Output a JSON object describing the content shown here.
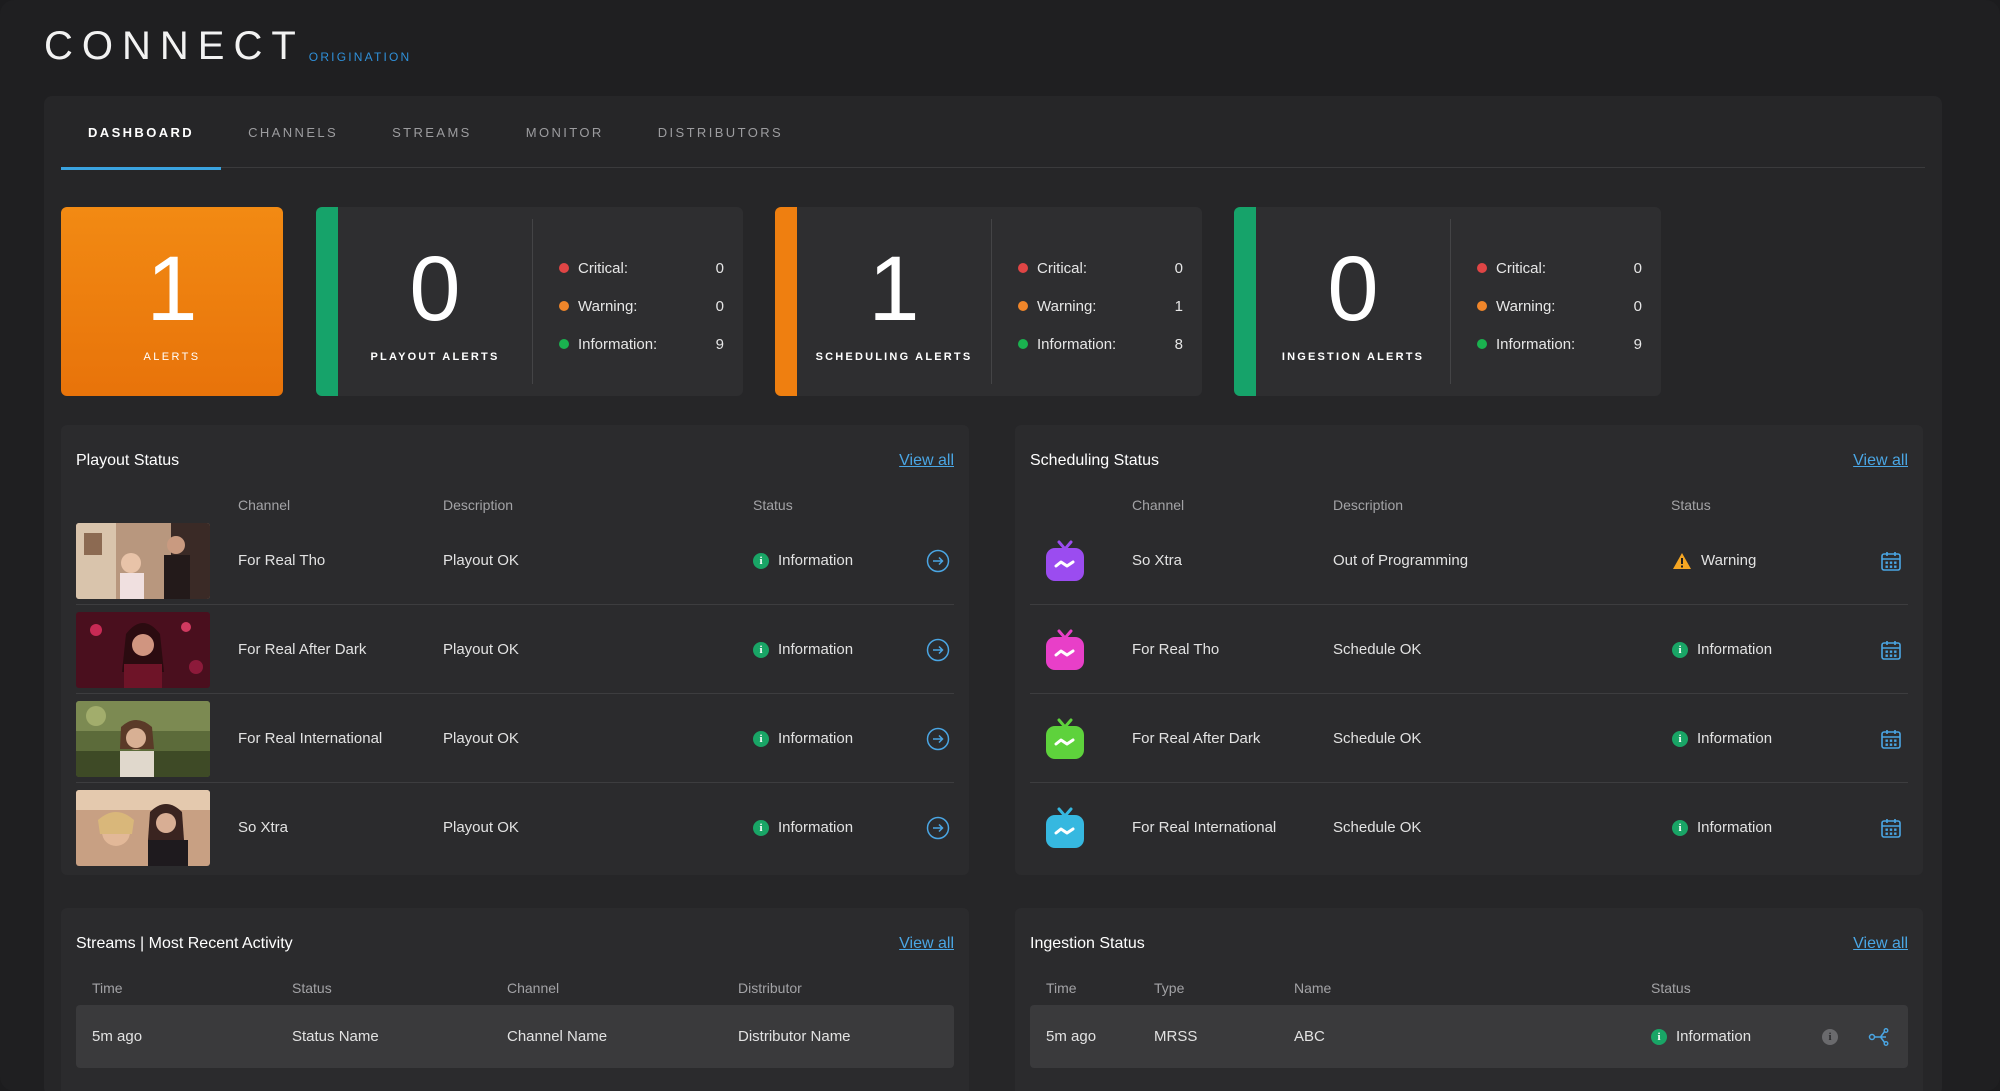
{
  "logo": {
    "main": "CONNECT",
    "sub": "ORIGINATION"
  },
  "tabs": [
    {
      "label": "DASHBOARD",
      "active": true
    },
    {
      "label": "CHANNELS",
      "active": false
    },
    {
      "label": "STREAMS",
      "active": false
    },
    {
      "label": "MONITOR",
      "active": false
    },
    {
      "label": "DISTRIBUTORS",
      "active": false
    }
  ],
  "alerts_total": {
    "count": "1",
    "label": "ALERTS",
    "color": "#ef7f10"
  },
  "alert_cards": [
    {
      "count": "0",
      "label": "PLAYOUT ALERTS",
      "accent": "#16a36a",
      "critical_label": "Critical:",
      "critical": "0",
      "warning_label": "Warning:",
      "warning": "0",
      "info_label": "Information:",
      "info": "9"
    },
    {
      "count": "1",
      "label": "SCHEDULING ALERTS",
      "accent": "#ef7f10",
      "critical_label": "Critical:",
      "critical": "0",
      "warning_label": "Warning:",
      "warning": "1",
      "info_label": "Information:",
      "info": "8"
    },
    {
      "count": "0",
      "label": "INGESTION ALERTS",
      "accent": "#16a36a",
      "critical_label": "Critical:",
      "critical": "0",
      "warning_label": "Warning:",
      "warning": "0",
      "info_label": "Information:",
      "info": "9"
    }
  ],
  "colors": {
    "critical": "#e04545",
    "warning": "#f0862a",
    "info": "#1ab24f",
    "link": "#4aa6e4"
  },
  "playout": {
    "title": "Playout Status",
    "view_all": "View all",
    "headers": {
      "channel": "Channel",
      "description": "Description",
      "status": "Status"
    },
    "rows": [
      {
        "channel": "For Real Tho",
        "description": "Playout OK",
        "status": "Information"
      },
      {
        "channel": "For Real After Dark",
        "description": "Playout OK",
        "status": "Information"
      },
      {
        "channel": "For Real International",
        "description": "Playout OK",
        "status": "Information"
      },
      {
        "channel": "So Xtra",
        "description": "Playout OK",
        "status": "Information"
      }
    ]
  },
  "scheduling": {
    "title": "Scheduling Status",
    "view_all": "View all",
    "headers": {
      "channel": "Channel",
      "description": "Description",
      "status": "Status"
    },
    "rows": [
      {
        "channel": "So Xtra",
        "description": "Out of Programming",
        "status": "Warning",
        "icon_color": "#9b4cf0"
      },
      {
        "channel": "For Real Tho",
        "description": "Schedule OK",
        "status": "Information",
        "icon_color": "#e83fc8"
      },
      {
        "channel": "For Real After Dark",
        "description": "Schedule OK",
        "status": "Information",
        "icon_color": "#5ed23c"
      },
      {
        "channel": "For Real International",
        "description": "Schedule OK",
        "status": "Information",
        "icon_color": "#36b8e0"
      }
    ]
  },
  "streams": {
    "title": "Streams | Most Recent Activity",
    "view_all": "View all",
    "headers": {
      "time": "Time",
      "status": "Status",
      "channel": "Channel",
      "distributor": "Distributor"
    },
    "rows": [
      {
        "time": "5m ago",
        "status": "Status Name",
        "channel": "Channel Name",
        "distributor": "Distributor Name"
      }
    ]
  },
  "ingestion": {
    "title": "Ingestion Status",
    "view_all": "View all",
    "headers": {
      "time": "Time",
      "type": "Type",
      "name": "Name",
      "status": "Status"
    },
    "rows": [
      {
        "time": "5m ago",
        "type": "MRSS",
        "name": "ABC",
        "status": "Information"
      }
    ]
  }
}
